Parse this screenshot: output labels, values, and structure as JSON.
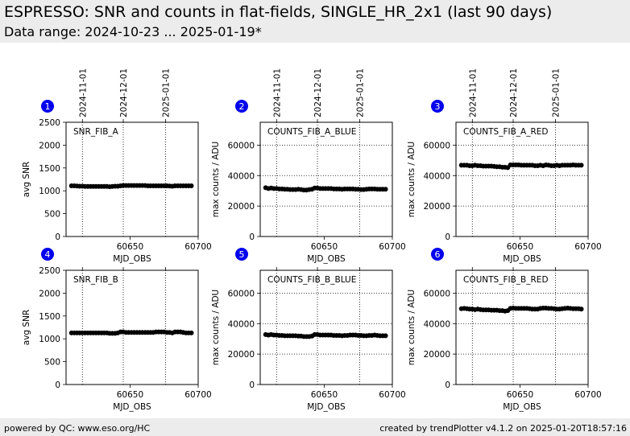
{
  "header": {
    "title": "ESPRESSO: SNR and counts in flat-fields, SINGLE_HR_2x1 (last 90 days)",
    "subtitle": "Data range: 2024-10-23 ... 2025-01-19*"
  },
  "footer": {
    "left": "powered by QC: www.eso.org/HC",
    "right": "created by trendPlotter v4.1.2 on 2025-01-20T18:57:16"
  },
  "colors": {
    "badge": "#0000ee",
    "points": "#000000",
    "header_bg": "#ececec"
  },
  "chart_data": [
    {
      "type": "scatter",
      "badge": "1",
      "label": "SNR_FIB_A",
      "xlabel": "MJD_OBS",
      "ylabel": "avg SNR",
      "xlim": [
        60603,
        60700
      ],
      "ylim": [
        0,
        2500
      ],
      "xticks": [
        60650,
        60700
      ],
      "yticks": [
        0,
        500,
        1000,
        1500,
        2000,
        2500
      ],
      "date_ticks": [
        {
          "mjd": 60615,
          "label": "2024-11-01"
        },
        {
          "mjd": 60645,
          "label": "2024-12-01"
        },
        {
          "mjd": 60676,
          "label": "2025-01-01"
        }
      ],
      "x": [
        60607,
        60609,
        60611,
        60613,
        60615,
        60617,
        60619,
        60621,
        60623,
        60625,
        60627,
        60629,
        60631,
        60633,
        60635,
        60637,
        60639,
        60641,
        60643,
        60645,
        60647,
        60649,
        60651,
        60653,
        60655,
        60657,
        60659,
        60661,
        60663,
        60665,
        60667,
        60669,
        60671,
        60673,
        60675,
        60677,
        60679,
        60681,
        60683,
        60685,
        60687,
        60689,
        60691,
        60693,
        60695
      ],
      "y": [
        1110,
        1110,
        1105,
        1100,
        1100,
        1095,
        1095,
        1095,
        1095,
        1095,
        1095,
        1095,
        1095,
        1095,
        1090,
        1095,
        1100,
        1100,
        1110,
        1115,
        1115,
        1115,
        1115,
        1115,
        1115,
        1115,
        1115,
        1115,
        1110,
        1110,
        1110,
        1110,
        1110,
        1110,
        1110,
        1110,
        1105,
        1100,
        1110,
        1110,
        1110,
        1110,
        1110,
        1110,
        1110
      ]
    },
    {
      "type": "scatter",
      "badge": "2",
      "label": "COUNTS_FIB_A_BLUE",
      "xlabel": "MJD_OBS",
      "ylabel": "max counts / ADU",
      "xlim": [
        60603,
        60700
      ],
      "ylim": [
        0,
        75000
      ],
      "xticks": [
        60650,
        60700
      ],
      "yticks": [
        0,
        20000,
        40000,
        60000
      ],
      "date_ticks": [
        {
          "mjd": 60615,
          "label": "2024-11-01"
        },
        {
          "mjd": 60645,
          "label": "2024-12-01"
        },
        {
          "mjd": 60676,
          "label": "2025-01-01"
        }
      ],
      "x": [
        60607,
        60609,
        60611,
        60613,
        60615,
        60617,
        60619,
        60621,
        60623,
        60625,
        60627,
        60629,
        60631,
        60633,
        60635,
        60637,
        60639,
        60641,
        60643,
        60645,
        60647,
        60649,
        60651,
        60653,
        60655,
        60657,
        60659,
        60661,
        60663,
        60665,
        60667,
        60669,
        60671,
        60673,
        60675,
        60677,
        60679,
        60681,
        60683,
        60685,
        60687,
        60689,
        60691,
        60693,
        60695
      ],
      "y": [
        32000,
        31500,
        31800,
        31500,
        31500,
        31200,
        31200,
        31000,
        31000,
        30800,
        30800,
        30800,
        31000,
        30800,
        30500,
        30500,
        30800,
        31000,
        31800,
        31800,
        31500,
        31500,
        31500,
        31500,
        31500,
        31200,
        31200,
        31200,
        31000,
        31200,
        31200,
        31200,
        31200,
        31000,
        31000,
        30800,
        30800,
        31000,
        31200,
        31200,
        31200,
        31000,
        31000,
        31000,
        31000
      ]
    },
    {
      "type": "scatter",
      "badge": "3",
      "label": "COUNTS_FIB_A_RED",
      "xlabel": "MJD_OBS",
      "ylabel": "max counts / ADU",
      "xlim": [
        60603,
        60700
      ],
      "ylim": [
        0,
        75000
      ],
      "xticks": [
        60650,
        60700
      ],
      "yticks": [
        0,
        20000,
        40000,
        60000
      ],
      "date_ticks": [
        {
          "mjd": 60615,
          "label": "2024-11-01"
        },
        {
          "mjd": 60645,
          "label": "2024-12-01"
        },
        {
          "mjd": 60676,
          "label": "2025-01-01"
        }
      ],
      "x": [
        60607,
        60609,
        60611,
        60613,
        60615,
        60617,
        60619,
        60621,
        60623,
        60625,
        60627,
        60629,
        60631,
        60633,
        60635,
        60637,
        60639,
        60641,
        60643,
        60645,
        60647,
        60649,
        60651,
        60653,
        60655,
        60657,
        60659,
        60661,
        60663,
        60665,
        60667,
        60669,
        60671,
        60673,
        60675,
        60677,
        60679,
        60681,
        60683,
        60685,
        60687,
        60689,
        60691,
        60693,
        60695
      ],
      "y": [
        46800,
        46800,
        46800,
        46500,
        46500,
        46800,
        46500,
        46500,
        46200,
        46200,
        46200,
        46200,
        46000,
        45800,
        45800,
        45500,
        45500,
        45200,
        47000,
        47000,
        47000,
        47000,
        46800,
        46800,
        46800,
        46800,
        46800,
        46500,
        46500,
        46800,
        46500,
        47000,
        46800,
        46500,
        46500,
        46800,
        46500,
        46800,
        46800,
        46800,
        46800,
        47000,
        46800,
        46800,
        46800
      ]
    },
    {
      "type": "scatter",
      "badge": "4",
      "label": "SNR_FIB_B",
      "xlabel": "MJD_OBS",
      "ylabel": "avg SNR",
      "xlim": [
        60603,
        60700
      ],
      "ylim": [
        0,
        2500
      ],
      "xticks": [
        60650,
        60700
      ],
      "yticks": [
        0,
        500,
        1000,
        1500,
        2000,
        2500
      ],
      "date_ticks": [
        {
          "mjd": 60615,
          "label": "2024-11-01"
        },
        {
          "mjd": 60645,
          "label": "2024-12-01"
        },
        {
          "mjd": 60676,
          "label": "2025-01-01"
        }
      ],
      "x": [
        60607,
        60609,
        60611,
        60613,
        60615,
        60617,
        60619,
        60621,
        60623,
        60625,
        60627,
        60629,
        60631,
        60633,
        60635,
        60637,
        60639,
        60641,
        60643,
        60645,
        60647,
        60649,
        60651,
        60653,
        60655,
        60657,
        60659,
        60661,
        60663,
        60665,
        60667,
        60669,
        60671,
        60673,
        60675,
        60677,
        60679,
        60681,
        60683,
        60685,
        60687,
        60689,
        60691,
        60693,
        60695
      ],
      "y": [
        1130,
        1130,
        1130,
        1130,
        1130,
        1130,
        1130,
        1130,
        1130,
        1130,
        1130,
        1130,
        1130,
        1130,
        1120,
        1120,
        1120,
        1130,
        1150,
        1150,
        1140,
        1140,
        1140,
        1140,
        1140,
        1140,
        1140,
        1140,
        1140,
        1140,
        1140,
        1150,
        1150,
        1150,
        1150,
        1140,
        1140,
        1130,
        1150,
        1150,
        1150,
        1140,
        1130,
        1130,
        1130
      ]
    },
    {
      "type": "scatter",
      "badge": "5",
      "label": "COUNTS_FIB_B_BLUE",
      "xlabel": "MJD_OBS",
      "ylabel": "max counts / ADU",
      "xlim": [
        60603,
        60700
      ],
      "ylim": [
        0,
        75000
      ],
      "xticks": [
        60650,
        60700
      ],
      "yticks": [
        0,
        20000,
        40000,
        60000
      ],
      "date_ticks": [
        {
          "mjd": 60615,
          "label": "2024-11-01"
        },
        {
          "mjd": 60645,
          "label": "2024-12-01"
        },
        {
          "mjd": 60676,
          "label": "2025-01-01"
        }
      ],
      "x": [
        60607,
        60609,
        60611,
        60613,
        60615,
        60617,
        60619,
        60621,
        60623,
        60625,
        60627,
        60629,
        60631,
        60633,
        60635,
        60637,
        60639,
        60641,
        60643,
        60645,
        60647,
        60649,
        60651,
        60653,
        60655,
        60657,
        60659,
        60661,
        60663,
        60665,
        60667,
        60669,
        60671,
        60673,
        60675,
        60677,
        60679,
        60681,
        60683,
        60685,
        60687,
        60689,
        60691,
        60693,
        60695
      ],
      "y": [
        32800,
        32500,
        32800,
        32500,
        32500,
        32200,
        32200,
        32000,
        32000,
        32000,
        32000,
        32000,
        31800,
        31800,
        31500,
        31500,
        31500,
        31800,
        32800,
        32800,
        32500,
        32500,
        32500,
        32500,
        32500,
        32200,
        32200,
        32200,
        32000,
        32200,
        32200,
        32500,
        32500,
        32500,
        32200,
        32200,
        32000,
        32000,
        32200,
        32200,
        32500,
        32200,
        32000,
        32000,
        32000
      ]
    },
    {
      "type": "scatter",
      "badge": "6",
      "label": "COUNTS_FIB_B_RED",
      "xlabel": "MJD_OBS",
      "ylabel": "max counts / ADU",
      "xlim": [
        60603,
        60700
      ],
      "ylim": [
        0,
        75000
      ],
      "xticks": [
        60650,
        60700
      ],
      "yticks": [
        0,
        20000,
        40000,
        60000
      ],
      "date_ticks": [
        {
          "mjd": 60615,
          "label": "2024-11-01"
        },
        {
          "mjd": 60645,
          "label": "2024-12-01"
        },
        {
          "mjd": 60676,
          "label": "2025-01-01"
        }
      ],
      "x": [
        60607,
        60609,
        60611,
        60613,
        60615,
        60617,
        60619,
        60621,
        60623,
        60625,
        60627,
        60629,
        60631,
        60633,
        60635,
        60637,
        60639,
        60641,
        60643,
        60645,
        60647,
        60649,
        60651,
        60653,
        60655,
        60657,
        60659,
        60661,
        60663,
        60665,
        60667,
        60669,
        60671,
        60673,
        60675,
        60677,
        60679,
        60681,
        60683,
        60685,
        60687,
        60689,
        60691,
        60693,
        60695
      ],
      "y": [
        49800,
        50000,
        49800,
        49500,
        49500,
        49200,
        49500,
        49200,
        49000,
        49000,
        49000,
        48800,
        48800,
        48800,
        48500,
        48500,
        48200,
        48500,
        50000,
        50200,
        50000,
        50000,
        50000,
        50000,
        50000,
        49800,
        49500,
        49500,
        49500,
        50000,
        50200,
        50200,
        50000,
        50000,
        49800,
        49500,
        49500,
        49800,
        50000,
        50200,
        50000,
        49800,
        49800,
        49800,
        49500
      ]
    }
  ]
}
